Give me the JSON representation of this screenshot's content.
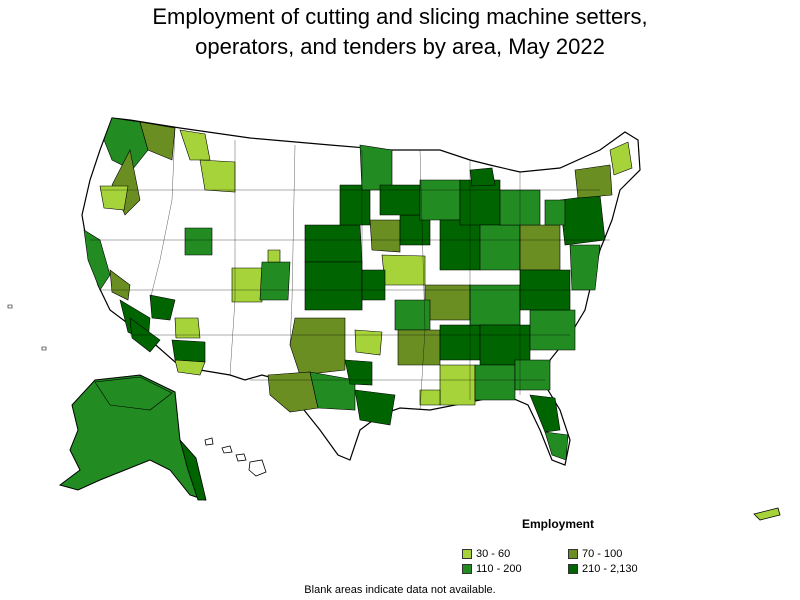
{
  "title_line1": "Employment of cutting and slicing machine setters,",
  "title_line2": "operators, and tenders by area, May 2022",
  "legend": {
    "title": "Employment",
    "items": [
      {
        "label": "30 - 60",
        "color": "#a6d23a"
      },
      {
        "label": "70 - 100",
        "color": "#6b8e23"
      },
      {
        "label": "110 - 200",
        "color": "#228b22"
      },
      {
        "label": "210 - 2,130",
        "color": "#006400"
      }
    ]
  },
  "footnote": "Blank areas indicate data not available.",
  "colors": {
    "no_data": "#ffffff",
    "border": "#000000"
  }
}
